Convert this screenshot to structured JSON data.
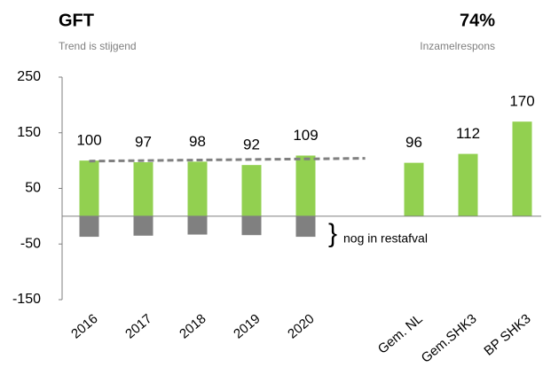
{
  "chart_data": {
    "type": "bar",
    "title": "GFT",
    "subtitle": "Trend is stijgend",
    "kpi": "74%",
    "kpi_label": "Inzamelrespons",
    "categories": [
      "2016",
      "2017",
      "2018",
      "2019",
      "2020",
      null,
      "Gem. NL",
      "Gem.SHK3",
      "BP SHK3"
    ],
    "values": [
      100,
      97,
      98,
      92,
      109,
      null,
      96,
      112,
      170
    ],
    "color": "#92d050",
    "rest_values": [
      -37,
      -35,
      -33,
      -34,
      -37,
      null,
      null,
      null,
      null
    ],
    "rest_color": "#808080",
    "trend": {
      "values": [
        99,
        104
      ],
      "color": "#808080"
    },
    "annotation": "nog in restafval",
    "ylim": [
      -150,
      250
    ],
    "yticks": [
      -150,
      -50,
      50,
      150,
      250
    ]
  }
}
